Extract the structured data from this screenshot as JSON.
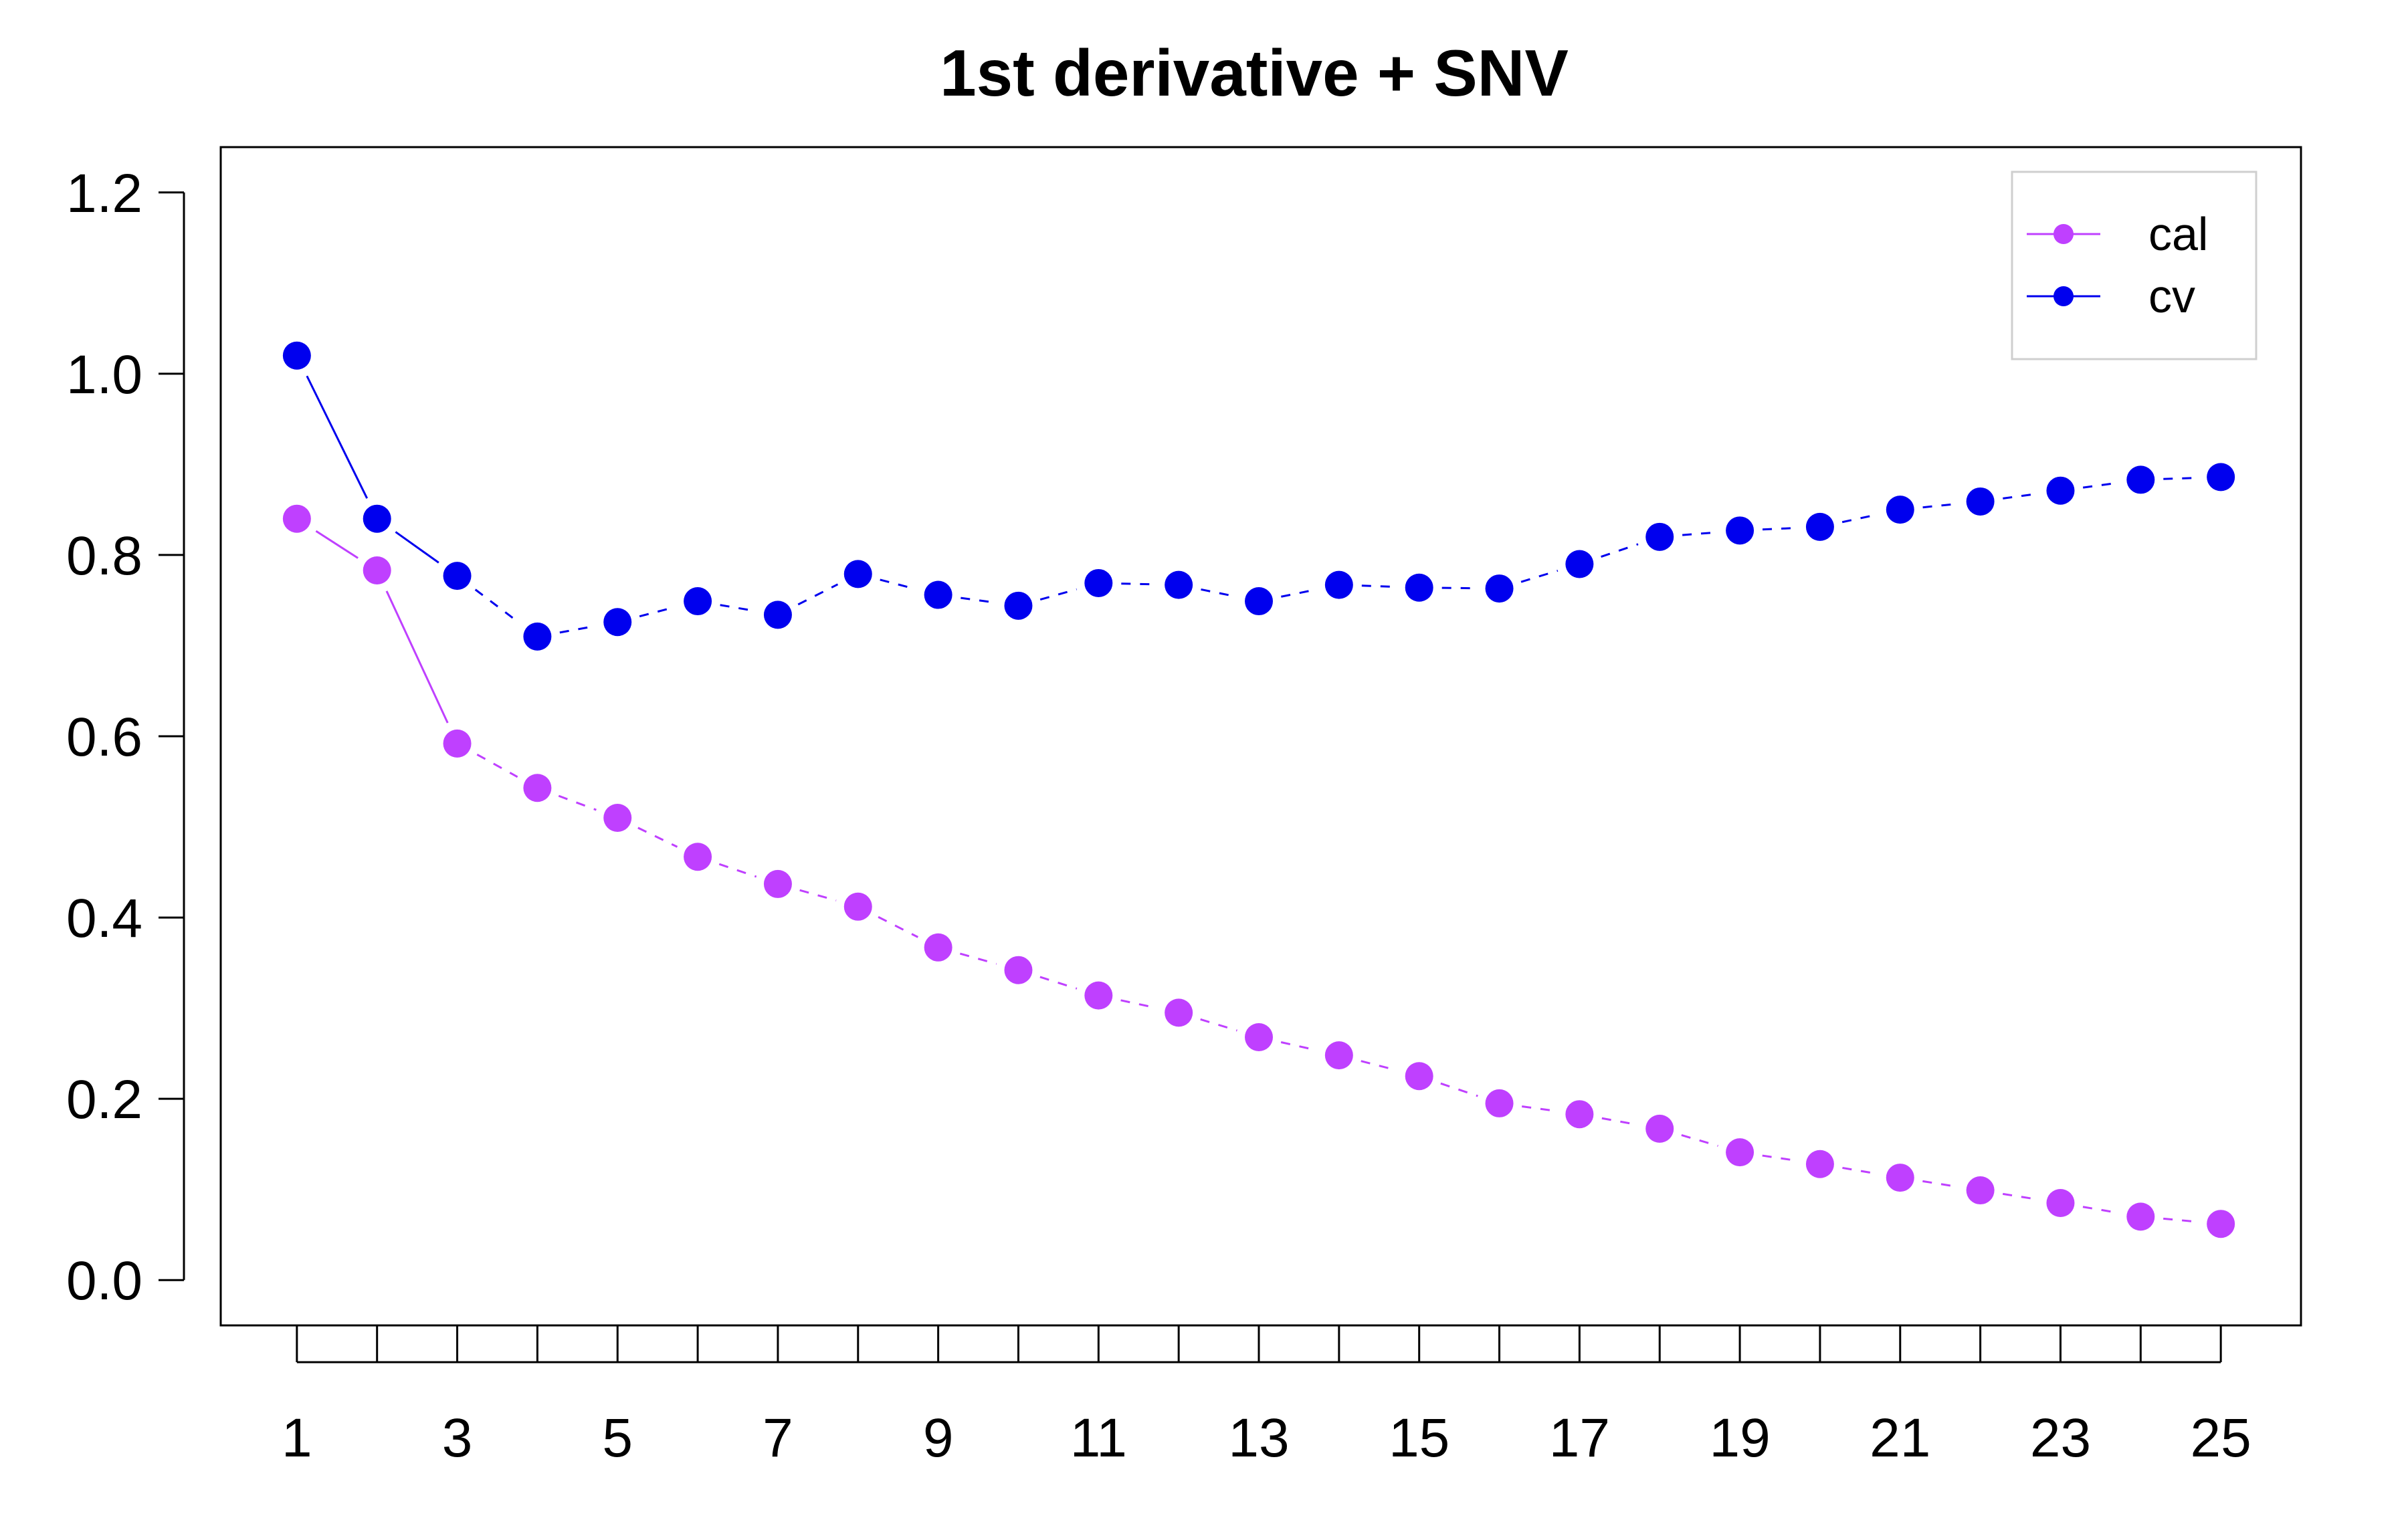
{
  "chart_data": {
    "type": "line",
    "title": "1st derivative + SNV",
    "xlabel": "",
    "ylabel": "",
    "x": [
      1,
      2,
      3,
      4,
      5,
      6,
      7,
      8,
      9,
      10,
      11,
      12,
      13,
      14,
      15,
      16,
      17,
      18,
      19,
      20,
      21,
      22,
      23,
      24,
      25
    ],
    "xticks": [
      1,
      3,
      5,
      7,
      9,
      11,
      13,
      15,
      17,
      19,
      21,
      23,
      25
    ],
    "yticks": [
      "0.0",
      "0.2",
      "0.4",
      "0.6",
      "0.8",
      "1.0",
      "1.2"
    ],
    "ylim": [
      -0.05,
      1.25
    ],
    "xlim": [
      0.05,
      26.0
    ],
    "grid": false,
    "legend_position": "top-right",
    "series": [
      {
        "name": "cal",
        "color": "#bf40ff",
        "values": [
          0.84,
          0.783,
          0.592,
          0.543,
          0.51,
          0.467,
          0.437,
          0.412,
          0.367,
          0.342,
          0.314,
          0.295,
          0.268,
          0.248,
          0.225,
          0.195,
          0.183,
          0.167,
          0.141,
          0.128,
          0.113,
          0.099,
          0.085,
          0.07,
          0.062
        ]
      },
      {
        "name": "cv",
        "color": "#0000ee",
        "values": [
          1.02,
          0.84,
          0.777,
          0.71,
          0.726,
          0.749,
          0.734,
          0.779,
          0.756,
          0.744,
          0.769,
          0.767,
          0.749,
          0.767,
          0.764,
          0.763,
          0.79,
          0.82,
          0.827,
          0.831,
          0.85,
          0.859,
          0.871,
          0.883,
          0.886
        ]
      }
    ]
  }
}
